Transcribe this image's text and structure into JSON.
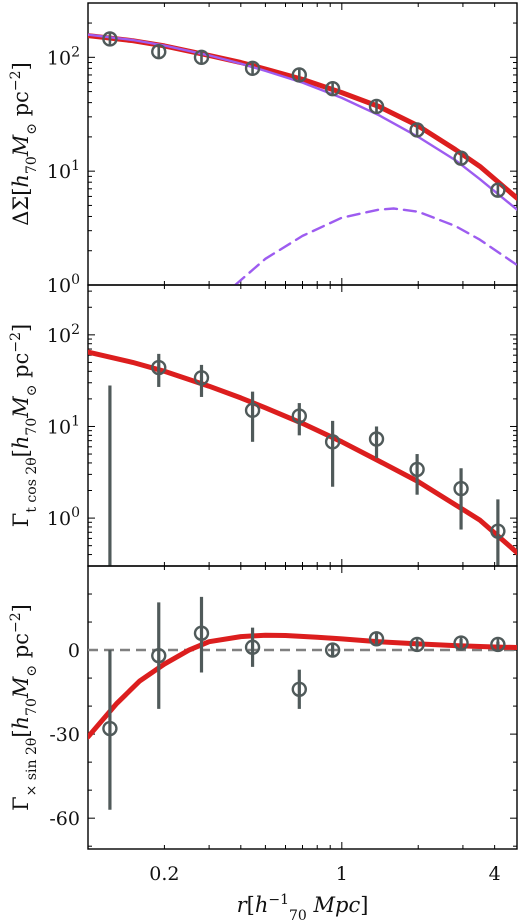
{
  "chart_data": [
    {
      "type": "line",
      "panel": "top",
      "ylabel": "ΔΣ[h₇₀M⊙ pc⁻²]",
      "yscale": "log",
      "ylim": [
        1,
        300
      ],
      "xscale": "log",
      "xlim": [
        0.1,
        4.9
      ],
      "yticks": [
        {
          "v": 1,
          "label": "10⁰"
        },
        {
          "v": 10,
          "label": "10¹"
        },
        {
          "v": 100,
          "label": "10²"
        }
      ],
      "points": [
        {
          "x": 0.122,
          "y": 145,
          "err": 0
        },
        {
          "x": 0.19,
          "y": 112,
          "err": 0
        },
        {
          "x": 0.28,
          "y": 100,
          "err": 0
        },
        {
          "x": 0.445,
          "y": 80,
          "err": 0
        },
        {
          "x": 0.68,
          "y": 70,
          "err": 0
        },
        {
          "x": 0.92,
          "y": 53,
          "err": 0
        },
        {
          "x": 1.37,
          "y": 37,
          "err": 0
        },
        {
          "x": 1.98,
          "y": 23,
          "err": 0
        },
        {
          "x": 2.95,
          "y": 13,
          "err": 0
        },
        {
          "x": 4.12,
          "y": 6.8,
          "err": 0
        }
      ],
      "series": [
        {
          "style": "red-thick",
          "color": "#dc1e1e",
          "x": [
            0.1,
            0.15,
            0.2,
            0.3,
            0.4,
            0.5,
            0.7,
            1.0,
            1.4,
            2.0,
            2.8,
            3.5,
            4.9
          ],
          "y": [
            155,
            140,
            126,
            104,
            90,
            79,
            64,
            49,
            37,
            25,
            15.5,
            11,
            5.8
          ]
        },
        {
          "style": "purple",
          "color": "#9d5cf0",
          "x": [
            0.1,
            0.15,
            0.2,
            0.3,
            0.4,
            0.5,
            0.7,
            1.0,
            1.4,
            2.0,
            2.8,
            3.5,
            4.9
          ],
          "y": [
            158,
            142,
            127,
            104,
            88,
            76,
            60,
            44,
            31,
            20,
            12.5,
            8.5,
            4.6
          ]
        },
        {
          "style": "purple-dashed",
          "color": "#9d5cf0",
          "x": [
            0.38,
            0.5,
            0.7,
            1.0,
            1.4,
            1.6,
            2.0,
            2.8,
            3.5,
            4.9
          ],
          "y": [
            1.0,
            1.7,
            2.7,
            3.9,
            4.6,
            4.7,
            4.4,
            3.3,
            2.5,
            1.5
          ]
        }
      ]
    },
    {
      "type": "line",
      "panel": "middle",
      "ylabel": "Γt cos 2θ[h₇₀M⊙ pc⁻²]",
      "yscale": "log",
      "ylim": [
        0.3,
        350
      ],
      "xscale": "log",
      "xlim": [
        0.1,
        4.9
      ],
      "yticks": [
        {
          "v": 1,
          "label": "10⁰"
        },
        {
          "v": 10,
          "label": "10¹"
        },
        {
          "v": 100,
          "label": "10²"
        }
      ],
      "points": [
        {
          "x": 0.122,
          "y": null,
          "lo": 0.3,
          "hi": 28
        },
        {
          "x": 0.19,
          "y": 44,
          "lo": 27,
          "hi": 62
        },
        {
          "x": 0.28,
          "y": 34,
          "lo": 21,
          "hi": 47
        },
        {
          "x": 0.445,
          "y": 15,
          "lo": 6.8,
          "hi": 24
        },
        {
          "x": 0.68,
          "y": 13,
          "lo": 8,
          "hi": 18
        },
        {
          "x": 0.92,
          "y": 6.8,
          "lo": 2.2,
          "hi": 11.5
        },
        {
          "x": 1.37,
          "y": 7.3,
          "lo": 4.5,
          "hi": 10
        },
        {
          "x": 1.98,
          "y": 3.4,
          "lo": 1.8,
          "hi": 5.0
        },
        {
          "x": 2.95,
          "y": 2.1,
          "lo": 0.75,
          "hi": 3.5
        },
        {
          "x": 4.12,
          "y": 0.72,
          "lo": 0.3,
          "hi": 1.6
        }
      ],
      "series": [
        {
          "style": "red-thick",
          "color": "#dc1e1e",
          "x": [
            0.1,
            0.15,
            0.2,
            0.3,
            0.4,
            0.5,
            0.7,
            1.0,
            1.4,
            2.0,
            2.8,
            3.5,
            4.9
          ],
          "y": [
            65,
            50,
            40,
            27.5,
            20.5,
            16,
            10.8,
            6.8,
            4.2,
            2.5,
            1.4,
            0.95,
            0.42
          ]
        }
      ]
    },
    {
      "type": "line",
      "panel": "bottom",
      "ylabel": "Γ× sin 2θ[h₇₀M⊙ pc⁻²]",
      "xlabel": "r[h₇₀⁻¹ Mpc]",
      "yscale": "linear",
      "ylim": [
        -71,
        30
      ],
      "xscale": "log",
      "xlim": [
        0.1,
        4.9
      ],
      "yticks": [
        {
          "v": 0,
          "label": "0"
        },
        {
          "v": -30,
          "label": "-30"
        },
        {
          "v": -60,
          "label": "-60"
        }
      ],
      "xticks": [
        {
          "v": 0.2,
          "label": "0.2"
        },
        {
          "v": 1,
          "label": "1"
        },
        {
          "v": 4,
          "label": "4"
        }
      ],
      "points": [
        {
          "x": 0.122,
          "y": -28,
          "lo": -57,
          "hi": 0
        },
        {
          "x": 0.19,
          "y": -2,
          "lo": -21,
          "hi": 17
        },
        {
          "x": 0.28,
          "y": 6,
          "lo": -8,
          "hi": 19
        },
        {
          "x": 0.445,
          "y": 1,
          "lo": -6,
          "hi": 8
        },
        {
          "x": 0.68,
          "y": -14,
          "lo": -21,
          "hi": -7
        },
        {
          "x": 0.92,
          "y": 0,
          "lo": -2.5,
          "hi": 2.5
        },
        {
          "x": 1.37,
          "y": 4,
          "lo": 2,
          "hi": 6
        },
        {
          "x": 1.98,
          "y": 2,
          "lo": 1,
          "hi": 3
        },
        {
          "x": 2.95,
          "y": 2.5,
          "lo": 1,
          "hi": 4
        },
        {
          "x": 4.12,
          "y": 2,
          "lo": 1,
          "hi": 3
        }
      ],
      "zero_line": {
        "y": 0,
        "color": "#808080",
        "dashed": true
      },
      "series": [
        {
          "style": "red-thick",
          "color": "#dc1e1e",
          "x": [
            0.1,
            0.13,
            0.16,
            0.2,
            0.25,
            0.3,
            0.4,
            0.5,
            0.6,
            0.8,
            1.0,
            1.4,
            2.0,
            2.8,
            4.0,
            4.9
          ],
          "y": [
            -31,
            -19,
            -11,
            -5,
            0,
            3,
            4.8,
            5.3,
            5.2,
            4.6,
            4,
            3,
            2.2,
            1.6,
            1.1,
            0.9
          ]
        }
      ]
    }
  ]
}
